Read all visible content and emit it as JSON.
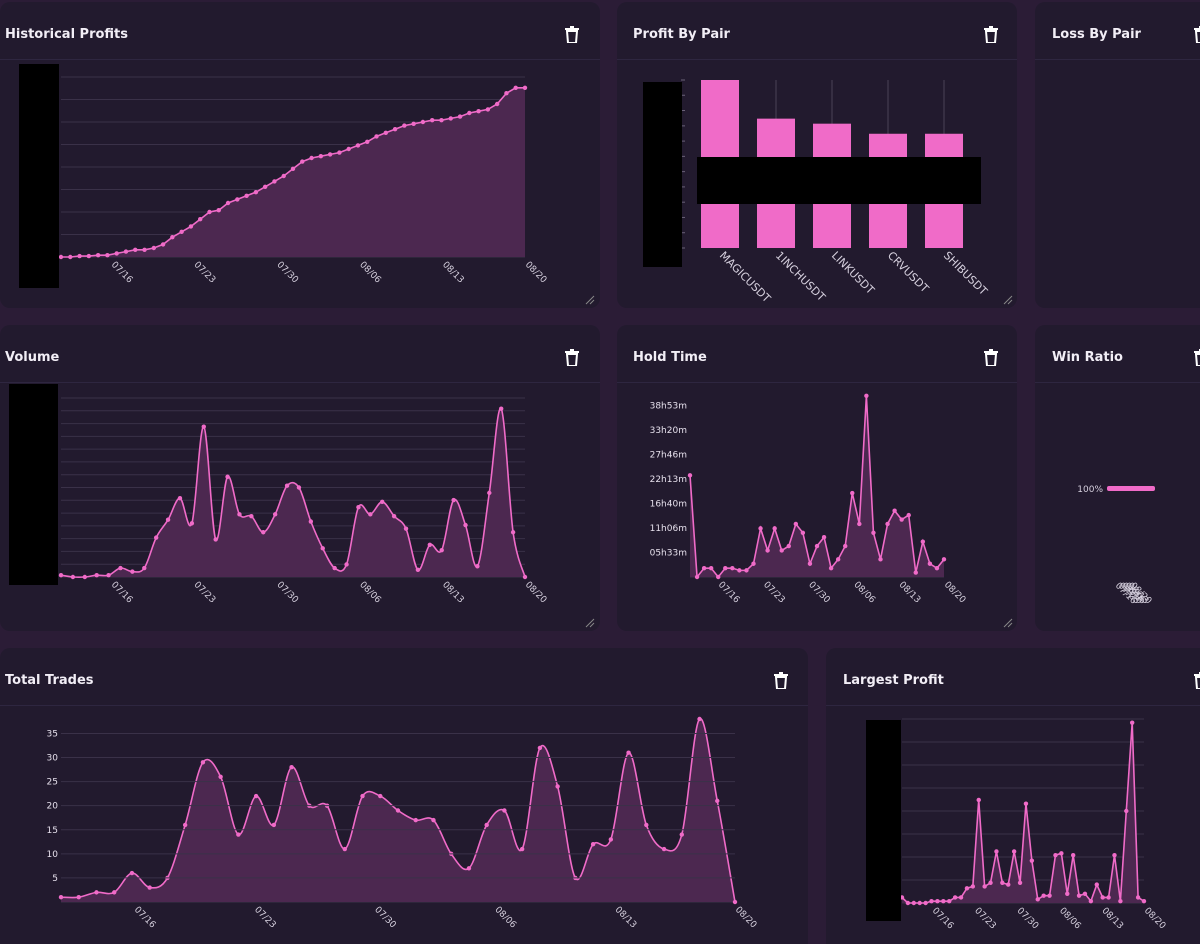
{
  "colors": {
    "background": "#2b1c36",
    "card": "#221a2e",
    "accent": "#f06bc8",
    "fill": "#4c2850",
    "grid": "#3a3148",
    "redaction": "#000000"
  },
  "panels": {
    "historical_profits": {
      "title": "Historical Profits"
    },
    "profit_by_pair": {
      "title": "Profit By Pair"
    },
    "loss_by_pair": {
      "title": "Loss By Pair"
    },
    "volume": {
      "title": "Volume"
    },
    "hold_time": {
      "title": "Hold Time"
    },
    "win_ratio": {
      "title": "Win Ratio"
    },
    "total_trades": {
      "title": "Total Trades"
    },
    "largest_profit": {
      "title": "Largest Profit"
    }
  },
  "icons": {
    "delete": "trash-icon",
    "resize": "resize-handle-icon"
  },
  "chart_data": [
    {
      "id": "historical_profits",
      "type": "area",
      "title": "Historical Profits",
      "xlabel": "",
      "ylabel": "",
      "y_axis_labels": "redacted",
      "xticks": [
        "07/16",
        "07/23",
        "07/30",
        "08/06",
        "08/13",
        "08/20"
      ],
      "ylim": [
        0,
        100
      ],
      "grid": true,
      "values": [
        0,
        0,
        0.5,
        0.5,
        1,
        1,
        2,
        3,
        4,
        4,
        5,
        7,
        11,
        14,
        17,
        21,
        25,
        26,
        30,
        32,
        34,
        36,
        39,
        42,
        45,
        49,
        53,
        55,
        56,
        57,
        58,
        60,
        62,
        64,
        67,
        69,
        71,
        73,
        74,
        75,
        76,
        76,
        77,
        78,
        80,
        81,
        82,
        85,
        91,
        94,
        94
      ]
    },
    {
      "id": "profit_by_pair",
      "type": "bar",
      "title": "Profit By Pair",
      "categories": [
        "MAGICUSDT",
        "1INCHUSDT",
        "LINKUSDT",
        "CRVUSDT",
        "SHIBUSDT"
      ],
      "values": [
        100,
        77,
        74,
        68,
        68
      ],
      "ylim": [
        0,
        100
      ],
      "y_axis_labels": "redacted"
    },
    {
      "id": "volume",
      "type": "area",
      "title": "Volume",
      "xticks": [
        "07/16",
        "07/23",
        "07/30",
        "08/06",
        "08/13",
        "08/20"
      ],
      "ylim": [
        0,
        100
      ],
      "grid": true,
      "y_axis_labels": "redacted",
      "values": [
        1,
        0,
        0,
        1,
        1,
        5,
        3,
        5,
        22,
        32,
        44,
        30,
        84,
        21,
        56,
        35,
        34,
        25,
        35,
        51,
        50,
        31,
        16,
        5,
        7,
        39,
        35,
        42,
        34,
        27,
        4,
        18,
        15,
        43,
        29,
        6,
        47,
        94,
        25,
        0
      ]
    },
    {
      "id": "hold_time",
      "type": "area",
      "title": "Hold Time",
      "yticks": [
        "05h33m",
        "11h06m",
        "16h40m",
        "22h13m",
        "27h46m",
        "33h20m",
        "38h53m"
      ],
      "ylim_hours": [
        0,
        40.5
      ],
      "xticks": [
        "07/16",
        "07/23",
        "07/30",
        "08/06",
        "08/13",
        "08/20"
      ],
      "values_hours": [
        23,
        0,
        2,
        2,
        0,
        2,
        2,
        1.5,
        1.5,
        3,
        11,
        6,
        11,
        6,
        7,
        12,
        10,
        3,
        7,
        9,
        2,
        4,
        7,
        19,
        12,
        41,
        10,
        4,
        12,
        15,
        13,
        14,
        1,
        8,
        3,
        2,
        4
      ]
    },
    {
      "id": "win_ratio",
      "type": "bar",
      "title": "Win Ratio",
      "categories": [
        "100%"
      ],
      "values": [
        100
      ],
      "xticks_overlapping": [
        "07/16",
        "07/23",
        "07/30",
        "08/06",
        "08/13",
        "08/20"
      ]
    },
    {
      "id": "total_trades",
      "type": "area",
      "title": "Total Trades",
      "yticks": [
        5,
        10,
        15,
        20,
        25,
        30,
        35
      ],
      "ylim": [
        0,
        38
      ],
      "xticks": [
        "07/16",
        "07/23",
        "07/30",
        "08/06",
        "08/13",
        "08/20"
      ],
      "values": [
        1,
        1,
        2,
        2,
        6,
        3,
        5,
        16,
        29,
        26,
        14,
        22,
        16,
        28,
        20,
        20,
        11,
        22,
        22,
        19,
        17,
        17,
        10,
        7,
        16,
        19,
        11,
        32,
        24,
        5,
        12,
        13,
        31,
        16,
        11,
        14,
        38,
        21,
        0
      ]
    },
    {
      "id": "largest_profit",
      "type": "area",
      "title": "Largest Profit",
      "xticks": [
        "07/16",
        "07/23",
        "07/30",
        "08/06",
        "08/13",
        "08/20"
      ],
      "ylim": [
        0,
        100
      ],
      "y_axis_labels": "redacted",
      "values": [
        3,
        0,
        0,
        0,
        0,
        1,
        1,
        1,
        1,
        3,
        3,
        8,
        9,
        56,
        9,
        11,
        28,
        11,
        10,
        28,
        11,
        54,
        23,
        2,
        4,
        4,
        26,
        27,
        5,
        26,
        4,
        5,
        1,
        10,
        3,
        3,
        26,
        1,
        50,
        98,
        3,
        1
      ]
    }
  ]
}
